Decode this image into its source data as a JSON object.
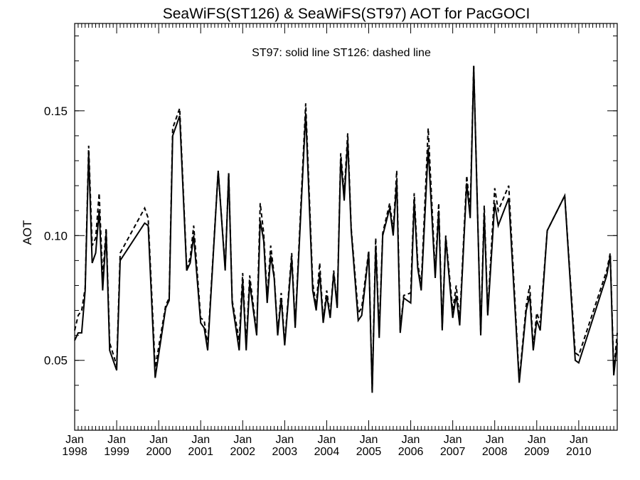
{
  "chart_data": {
    "type": "line",
    "title": "SeaWiFS(ST126) & SeaWiFS(ST97)  AOT for PacGOCI",
    "annotation": "ST97: solid line   ST126: dashed line",
    "xlabel": "",
    "ylabel": "AOT",
    "xlim": [
      "1998-01",
      "2010-12"
    ],
    "ylim": [
      0.022,
      0.185
    ],
    "yticks": [
      {
        "value": 0.05,
        "label": "0.05"
      },
      {
        "value": 0.1,
        "label": "0.10"
      },
      {
        "value": 0.15,
        "label": "0.15"
      }
    ],
    "xticks": [
      {
        "month": "Jan",
        "year": "1998",
        "date": "1998-01"
      },
      {
        "month": "Jan",
        "year": "1999",
        "date": "1999-01"
      },
      {
        "month": "Jan",
        "year": "2000",
        "date": "2000-01"
      },
      {
        "month": "Jan",
        "year": "2001",
        "date": "2001-01"
      },
      {
        "month": "Jan",
        "year": "2002",
        "date": "2002-01"
      },
      {
        "month": "Jan",
        "year": "2003",
        "date": "2003-01"
      },
      {
        "month": "Jan",
        "year": "2004",
        "date": "2004-01"
      },
      {
        "month": "Jan",
        "year": "2005",
        "date": "2005-01"
      },
      {
        "month": "Jan",
        "year": "2006",
        "date": "2006-01"
      },
      {
        "month": "Jan",
        "year": "2007",
        "date": "2007-01"
      },
      {
        "month": "Jan",
        "year": "2008",
        "date": "2008-01"
      },
      {
        "month": "Jan",
        "year": "2009",
        "date": "2009-01"
      },
      {
        "month": "Jan",
        "year": "2010",
        "date": "2010-01"
      }
    ],
    "series": [
      {
        "name": "ST97",
        "style": "solid",
        "color": "#000000",
        "points": [
          [
            "1998-01",
            0.058
          ],
          [
            "1998-02",
            0.061
          ],
          [
            "1998-03",
            0.061
          ],
          [
            "1998-04",
            0.078
          ],
          [
            "1998-05",
            0.133
          ],
          [
            "1998-06",
            0.089
          ],
          [
            "1998-07",
            0.093
          ],
          [
            "1998-08",
            0.11
          ],
          [
            "1998-09",
            0.078
          ],
          [
            "1998-10",
            0.101
          ],
          [
            "1998-11",
            0.054
          ],
          [
            "1999-01",
            0.046
          ],
          [
            "1999-02",
            0.09
          ],
          [
            "1999-09",
            0.105
          ],
          [
            "1999-10",
            0.104
          ],
          [
            "1999-12",
            0.043
          ],
          [
            "2000-03",
            0.071
          ],
          [
            "2000-04",
            0.074
          ],
          [
            "2000-05",
            0.14
          ],
          [
            "2000-07",
            0.148
          ],
          [
            "2000-09",
            0.086
          ],
          [
            "2000-10",
            0.089
          ],
          [
            "2000-11",
            0.1
          ],
          [
            "2001-01",
            0.065
          ],
          [
            "2001-02",
            0.063
          ],
          [
            "2001-03",
            0.054
          ],
          [
            "2001-06",
            0.126
          ],
          [
            "2001-08",
            0.086
          ],
          [
            "2001-09",
            0.125
          ],
          [
            "2001-10",
            0.073
          ],
          [
            "2001-12",
            0.054
          ],
          [
            "2002-01",
            0.082
          ],
          [
            "2002-02",
            0.054
          ],
          [
            "2002-03",
            0.081
          ],
          [
            "2002-05",
            0.06
          ],
          [
            "2002-06",
            0.106
          ],
          [
            "2002-07",
            0.098
          ],
          [
            "2002-08",
            0.073
          ],
          [
            "2002-09",
            0.092
          ],
          [
            "2002-10",
            0.083
          ],
          [
            "2002-11",
            0.06
          ],
          [
            "2002-12",
            0.075
          ],
          [
            "2003-01",
            0.056
          ],
          [
            "2003-03",
            0.091
          ],
          [
            "2003-04",
            0.063
          ],
          [
            "2003-07",
            0.149
          ],
          [
            "2003-09",
            0.078
          ],
          [
            "2003-10",
            0.07
          ],
          [
            "2003-11",
            0.085
          ],
          [
            "2003-12",
            0.065
          ],
          [
            "2004-01",
            0.076
          ],
          [
            "2004-02",
            0.067
          ],
          [
            "2004-03",
            0.085
          ],
          [
            "2004-04",
            0.071
          ],
          [
            "2004-05",
            0.131
          ],
          [
            "2004-06",
            0.114
          ],
          [
            "2004-07",
            0.138
          ],
          [
            "2004-08",
            0.102
          ],
          [
            "2004-10",
            0.066
          ],
          [
            "2004-11",
            0.068
          ],
          [
            "2005-01",
            0.093
          ],
          [
            "2005-02",
            0.037
          ],
          [
            "2005-03",
            0.096
          ],
          [
            "2005-04",
            0.059
          ],
          [
            "2005-05",
            0.1
          ],
          [
            "2005-07",
            0.111
          ],
          [
            "2005-08",
            0.1
          ],
          [
            "2005-09",
            0.122
          ],
          [
            "2005-10",
            0.061
          ],
          [
            "2005-11",
            0.075
          ],
          [
            "2006-01",
            0.073
          ],
          [
            "2006-02",
            0.114
          ],
          [
            "2006-03",
            0.087
          ],
          [
            "2006-04",
            0.078
          ],
          [
            "2006-06",
            0.135
          ],
          [
            "2006-08",
            0.083
          ],
          [
            "2006-09",
            0.11
          ],
          [
            "2006-10",
            0.062
          ],
          [
            "2006-11",
            0.099
          ],
          [
            "2007-01",
            0.067
          ],
          [
            "2007-02",
            0.076
          ],
          [
            "2007-03",
            0.064
          ],
          [
            "2007-05",
            0.121
          ],
          [
            "2007-06",
            0.107
          ],
          [
            "2007-07",
            0.168
          ],
          [
            "2007-09",
            0.06
          ],
          [
            "2007-10",
            0.109
          ],
          [
            "2007-11",
            0.068
          ],
          [
            "2008-01",
            0.113
          ],
          [
            "2008-02",
            0.104
          ],
          [
            "2008-05",
            0.115
          ],
          [
            "2008-08",
            0.041
          ],
          [
            "2008-10",
            0.07
          ],
          [
            "2008-11",
            0.076
          ],
          [
            "2008-12",
            0.054
          ],
          [
            "2009-01",
            0.066
          ],
          [
            "2009-02",
            0.062
          ],
          [
            "2009-04",
            0.102
          ],
          [
            "2009-09",
            0.116
          ],
          [
            "2009-12",
            0.05
          ],
          [
            "2010-01",
            0.049
          ],
          [
            "2010-09",
            0.084
          ],
          [
            "2010-10",
            0.092
          ],
          [
            "2010-11",
            0.044
          ],
          [
            "2010-12",
            0.057
          ]
        ]
      },
      {
        "name": "ST126",
        "style": "dashed",
        "color": "#000000",
        "points": [
          [
            "1998-01",
            0.062
          ],
          [
            "1998-02",
            0.068
          ],
          [
            "1998-03",
            0.07
          ],
          [
            "1998-04",
            0.079
          ],
          [
            "1998-05",
            0.136
          ],
          [
            "1998-06",
            0.096
          ],
          [
            "1998-07",
            0.099
          ],
          [
            "1998-08",
            0.117
          ],
          [
            "1998-09",
            0.083
          ],
          [
            "1998-10",
            0.103
          ],
          [
            "1998-11",
            0.057
          ],
          [
            "1999-01",
            0.048
          ],
          [
            "1999-02",
            0.093
          ],
          [
            "1999-09",
            0.111
          ],
          [
            "1999-10",
            0.107
          ],
          [
            "1999-12",
            0.047
          ],
          [
            "2000-03",
            0.072
          ],
          [
            "2000-04",
            0.075
          ],
          [
            "2000-05",
            0.143
          ],
          [
            "2000-07",
            0.151
          ],
          [
            "2000-09",
            0.087
          ],
          [
            "2000-10",
            0.091
          ],
          [
            "2000-11",
            0.104
          ],
          [
            "2001-01",
            0.067
          ],
          [
            "2001-02",
            0.066
          ],
          [
            "2001-03",
            0.056
          ],
          [
            "2001-06",
            0.126
          ],
          [
            "2001-08",
            0.087
          ],
          [
            "2001-09",
            0.125
          ],
          [
            "2001-10",
            0.074
          ],
          [
            "2001-12",
            0.058
          ],
          [
            "2002-01",
            0.085
          ],
          [
            "2002-02",
            0.056
          ],
          [
            "2002-03",
            0.084
          ],
          [
            "2002-05",
            0.061
          ],
          [
            "2002-06",
            0.113
          ],
          [
            "2002-07",
            0.101
          ],
          [
            "2002-08",
            0.075
          ],
          [
            "2002-09",
            0.096
          ],
          [
            "2002-10",
            0.084
          ],
          [
            "2002-11",
            0.061
          ],
          [
            "2002-12",
            0.077
          ],
          [
            "2003-01",
            0.057
          ],
          [
            "2003-03",
            0.093
          ],
          [
            "2003-04",
            0.064
          ],
          [
            "2003-07",
            0.153
          ],
          [
            "2003-09",
            0.081
          ],
          [
            "2003-10",
            0.072
          ],
          [
            "2003-11",
            0.089
          ],
          [
            "2003-12",
            0.066
          ],
          [
            "2004-01",
            0.078
          ],
          [
            "2004-02",
            0.068
          ],
          [
            "2004-03",
            0.086
          ],
          [
            "2004-04",
            0.072
          ],
          [
            "2004-05",
            0.133
          ],
          [
            "2004-06",
            0.117
          ],
          [
            "2004-07",
            0.141
          ],
          [
            "2004-08",
            0.103
          ],
          [
            "2004-10",
            0.069
          ],
          [
            "2004-11",
            0.071
          ],
          [
            "2005-01",
            0.094
          ],
          [
            "2005-02",
            0.038
          ],
          [
            "2005-03",
            0.099
          ],
          [
            "2005-04",
            0.061
          ],
          [
            "2005-05",
            0.101
          ],
          [
            "2005-07",
            0.113
          ],
          [
            "2005-08",
            0.102
          ],
          [
            "2005-09",
            0.126
          ],
          [
            "2005-10",
            0.062
          ],
          [
            "2005-11",
            0.076
          ],
          [
            "2006-01",
            0.077
          ],
          [
            "2006-02",
            0.117
          ],
          [
            "2006-03",
            0.089
          ],
          [
            "2006-04",
            0.08
          ],
          [
            "2006-06",
            0.143
          ],
          [
            "2006-08",
            0.085
          ],
          [
            "2006-09",
            0.113
          ],
          [
            "2006-10",
            0.063
          ],
          [
            "2006-11",
            0.1
          ],
          [
            "2007-01",
            0.07
          ],
          [
            "2007-02",
            0.08
          ],
          [
            "2007-03",
            0.066
          ],
          [
            "2007-05",
            0.124
          ],
          [
            "2007-06",
            0.11
          ],
          [
            "2007-07",
            0.168
          ],
          [
            "2007-09",
            0.061
          ],
          [
            "2007-10",
            0.112
          ],
          [
            "2007-11",
            0.069
          ],
          [
            "2008-01",
            0.119
          ],
          [
            "2008-02",
            0.11
          ],
          [
            "2008-05",
            0.12
          ],
          [
            "2008-08",
            0.042
          ],
          [
            "2008-10",
            0.072
          ],
          [
            "2008-11",
            0.08
          ],
          [
            "2008-12",
            0.055
          ],
          [
            "2009-01",
            0.069
          ],
          [
            "2009-02",
            0.065
          ],
          [
            "2009-04",
            0.102
          ],
          [
            "2009-09",
            0.116
          ],
          [
            "2009-12",
            0.053
          ],
          [
            "2010-01",
            0.052
          ],
          [
            "2010-09",
            0.086
          ],
          [
            "2010-10",
            0.093
          ],
          [
            "2010-11",
            0.046
          ],
          [
            "2010-12",
            0.061
          ]
        ]
      }
    ]
  }
}
